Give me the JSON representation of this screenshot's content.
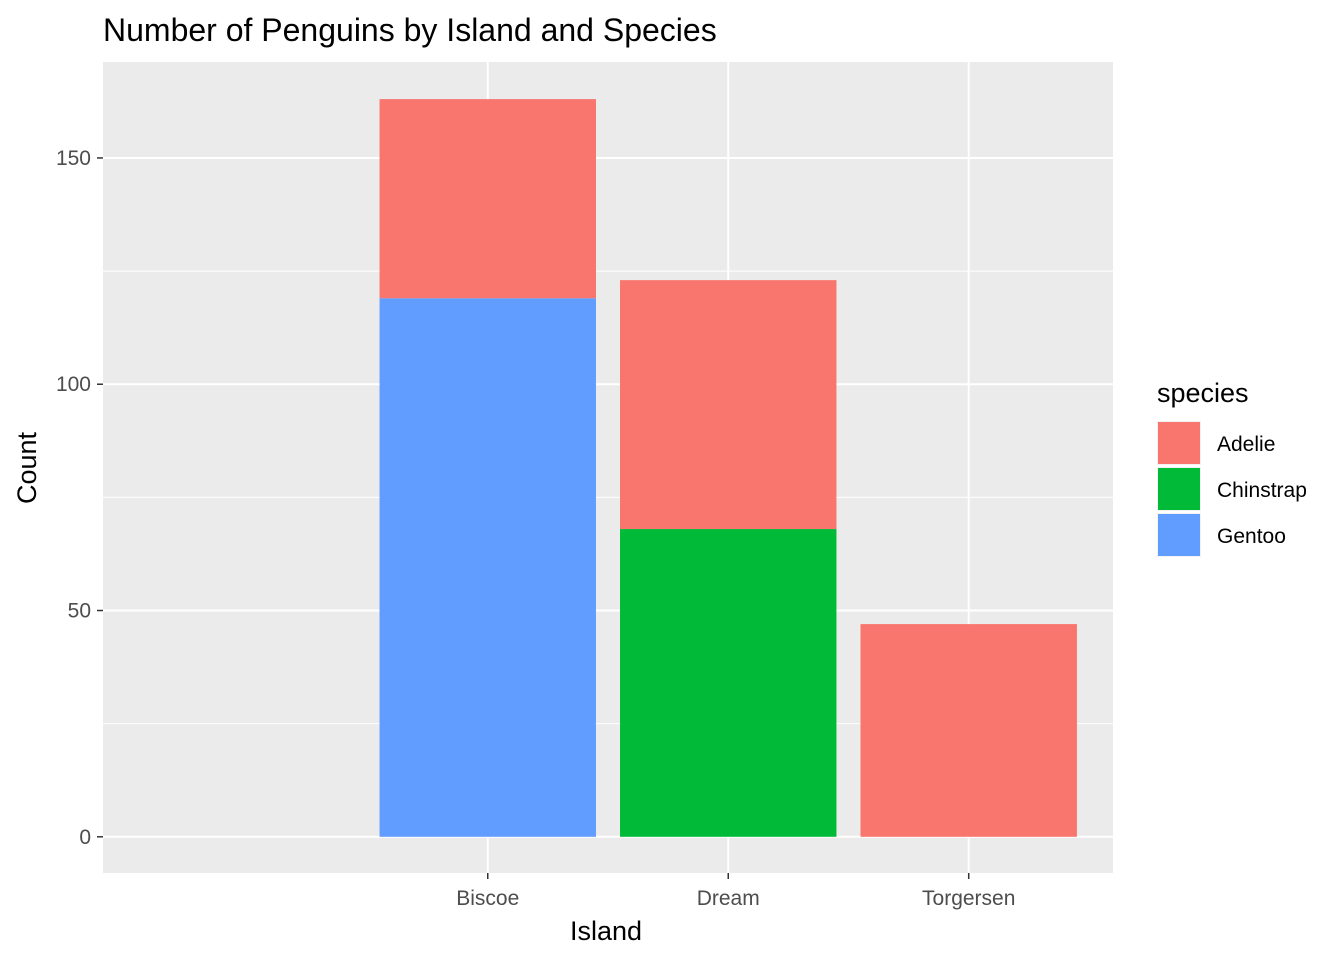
{
  "chart_data": {
    "type": "bar",
    "stacked": true,
    "title": "Number of Penguins by Island and Species",
    "xlabel": "Island",
    "ylabel": "Count",
    "categories": [
      "Biscoe",
      "Dream",
      "Torgersen"
    ],
    "series": [
      {
        "name": "Gentoo",
        "color": "#619CFF",
        "values": [
          119,
          0,
          0
        ]
      },
      {
        "name": "Chinstrap",
        "color": "#00BA38",
        "values": [
          0,
          68,
          0
        ]
      },
      {
        "name": "Adelie",
        "color": "#F8766D",
        "values": [
          44,
          55,
          47
        ]
      }
    ],
    "ylim": [
      -8,
      171.2
    ],
    "yticks": [
      0,
      50,
      100,
      150
    ],
    "grid": true,
    "legend": {
      "title": "species",
      "position": "right",
      "entries": [
        {
          "label": "Adelie",
          "color": "#F8766D"
        },
        {
          "label": "Chinstrap",
          "color": "#00BA38"
        },
        {
          "label": "Gentoo",
          "color": "#619CFF"
        }
      ]
    }
  }
}
